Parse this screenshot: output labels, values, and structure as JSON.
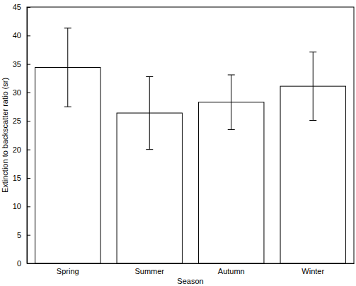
{
  "chart_data": {
    "type": "bar",
    "x_label": "Season",
    "y_label": "Extinction to backscatter ratio (sr)",
    "categories": [
      "Spring",
      "Summer",
      "Autumn",
      "Winter"
    ],
    "values": [
      34.4,
      26.4,
      28.3,
      31.1
    ],
    "errors": [
      6.9,
      6.4,
      4.8,
      6.0
    ],
    "color": "#ffffff",
    "ylim": [
      0,
      45
    ],
    "yticks": [
      0,
      5,
      10,
      15,
      20,
      25,
      30,
      35,
      40,
      45
    ],
    "grid": false
  }
}
